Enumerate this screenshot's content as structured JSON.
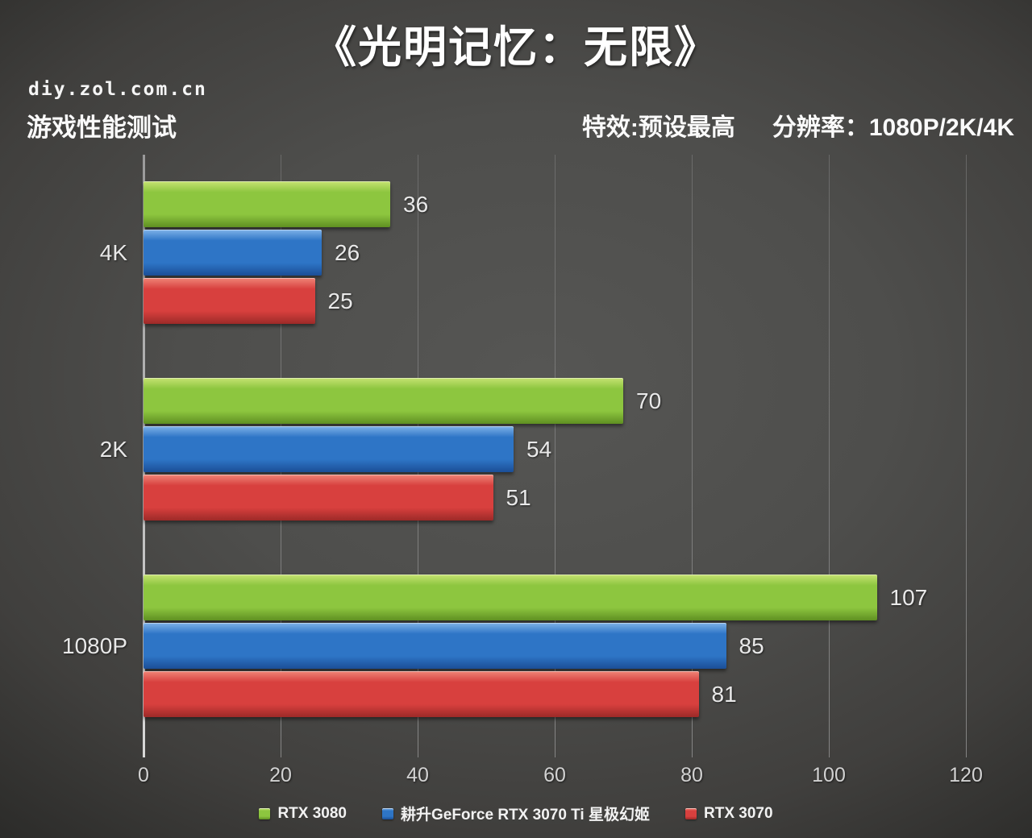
{
  "page": {
    "title": "《光明记忆：无限》",
    "watermark": "diy.zol.com.cn",
    "subtitle": "游戏性能测试",
    "settings_label": "特效:预设最高",
    "resolution_label": "分辨率：1080P/2K/4K"
  },
  "chart_data": {
    "type": "bar",
    "orientation": "horizontal",
    "grouped": true,
    "categories": [
      "4K",
      "2K",
      "1080P"
    ],
    "series": [
      {
        "name": "RTX 3080",
        "color": "#8dc63f",
        "color_light": "#c6e272",
        "color_dark": "#5f8f22",
        "values": [
          36,
          70,
          107
        ]
      },
      {
        "name": "耕升GeForce RTX 3070 Ti 星极幻姬",
        "color": "#2e75c6",
        "color_light": "#7fb2e8",
        "color_dark": "#1b4e96",
        "values": [
          26,
          54,
          85
        ]
      },
      {
        "name": "RTX 3070",
        "color": "#d8403e",
        "color_light": "#ef8577",
        "color_dark": "#9c2a28",
        "values": [
          25,
          51,
          81
        ]
      }
    ],
    "xlim": [
      0,
      120
    ],
    "xticks": [
      0,
      20,
      40,
      60,
      80,
      100,
      120
    ],
    "grid": "vertical",
    "value_labels": true,
    "legend_position": "bottom"
  }
}
